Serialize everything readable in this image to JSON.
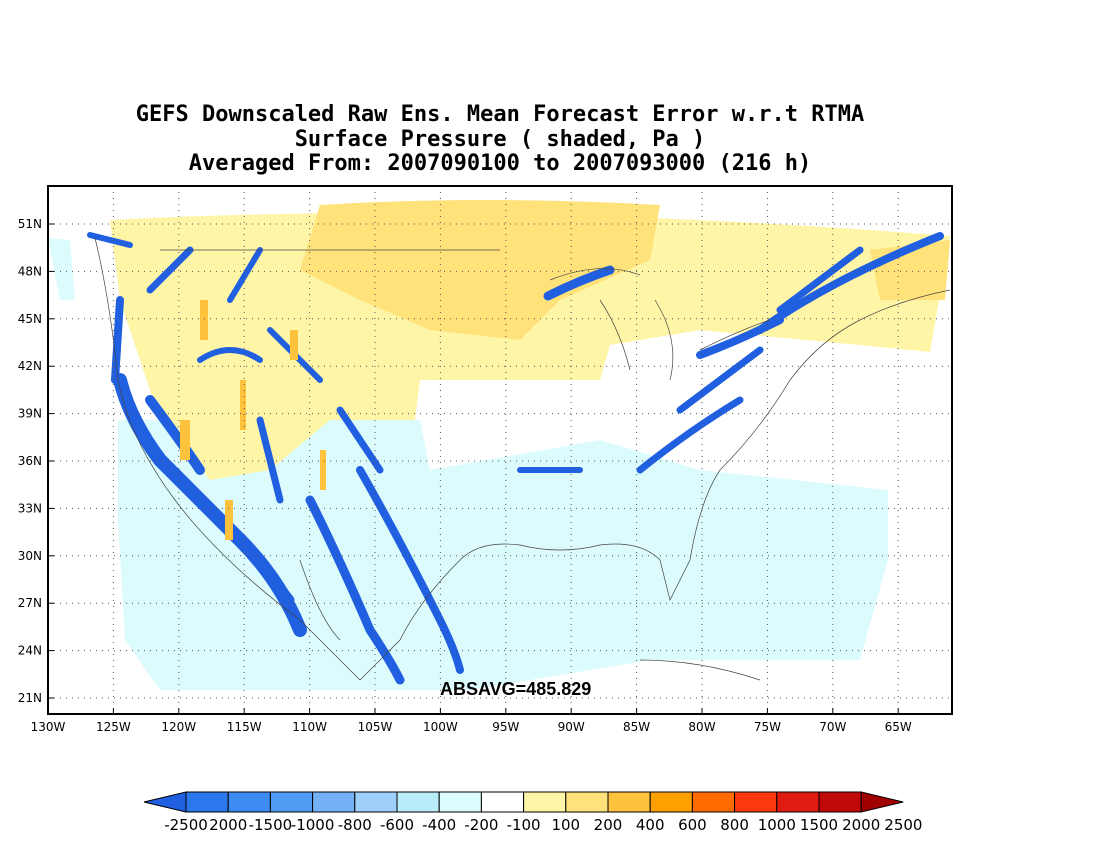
{
  "title": {
    "line1": "GEFS Downscaled Raw Ens. Mean Forecast Error w.r.t RTMA",
    "line2": "Surface Pressure ( shaded, Pa )",
    "line3": "Averaged From: 2007090100 to 2007093000 (216 h)"
  },
  "absavg": "ABSAVG=485.829",
  "lat_labels": [
    "51N",
    "48N",
    "45N",
    "42N",
    "39N",
    "36N",
    "33N",
    "30N",
    "27N",
    "24N",
    "21N"
  ],
  "lon_labels": [
    "130W",
    "125W",
    "120W",
    "115W",
    "110W",
    "105W",
    "100W",
    "95W",
    "90W",
    "85W",
    "80W",
    "75W",
    "70W",
    "65W"
  ],
  "colorbar": {
    "colors": [
      "#1f5fe0",
      "#2a78ec",
      "#3b8bf2",
      "#4f9cf4",
      "#73b2f7",
      "#9fcffb",
      "#b8ecf9",
      "#dcfbfd",
      "#ffffff",
      "#fff5a6",
      "#ffe27a",
      "#ffc23c",
      "#ffa000",
      "#ff6b00",
      "#ff3a10",
      "#e01c12",
      "#c00a0a",
      "#a00000"
    ],
    "labels": [
      "-2500",
      "2000",
      "-1500",
      "-1000",
      "-800",
      "-600",
      "-400",
      "-200",
      "-100",
      "100",
      "200",
      "400",
      "600",
      "800",
      "1000",
      "1500",
      "2000",
      "2500"
    ]
  },
  "map_fields": {
    "colors_used": {
      "deep_blue": "#1f5fe0",
      "light_blue": "#dcfbfd",
      "yellow": "#ffe27a",
      "pale_yellow": "#fff5a6",
      "orange": "#ffc23c"
    }
  }
}
